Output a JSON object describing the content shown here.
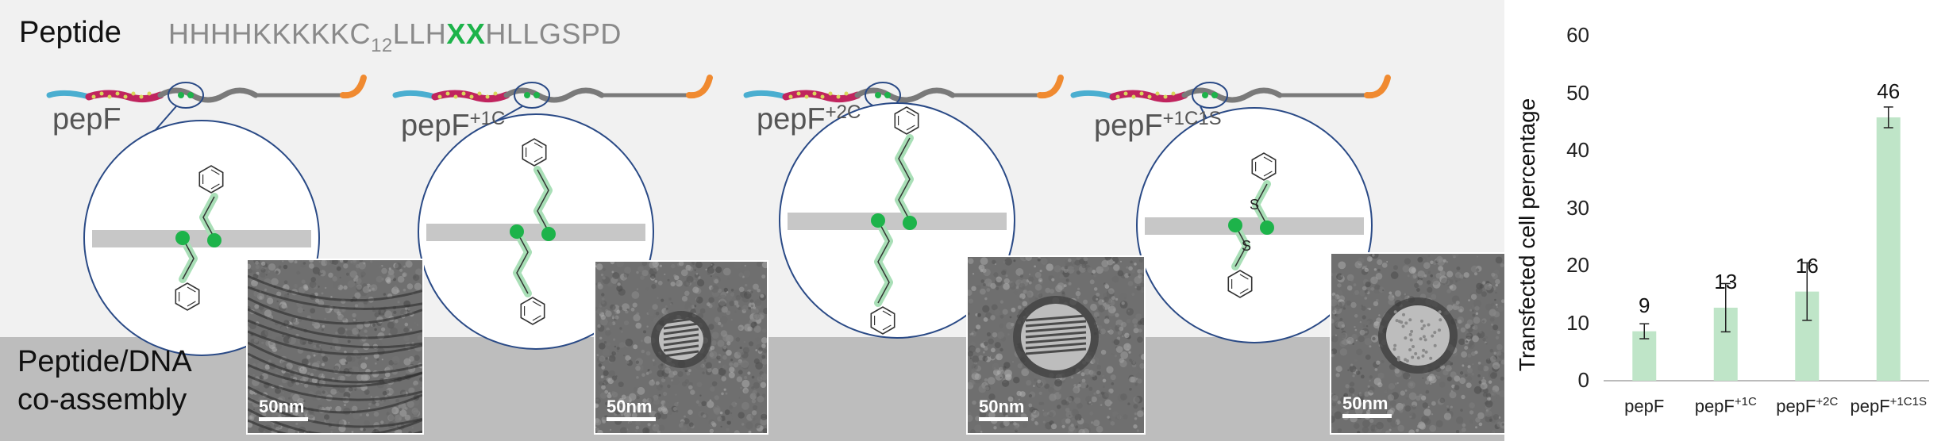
{
  "header": {
    "peptide_label": "Peptide",
    "sequence_prefix": "HHHHKKKKKC",
    "sequence_subscript": "12",
    "sequence_mid": "LLH",
    "sequence_highlight": "XX",
    "sequence_suffix": "HLLGSPD"
  },
  "variants": [
    {
      "base": "pepF",
      "sup": ""
    },
    {
      "base": "pepF",
      "sup": "+1C"
    },
    {
      "base": "pepF",
      "sup": "+2C"
    },
    {
      "base": "pepF",
      "sup": "+1C1S"
    }
  ],
  "linker_atom": "S",
  "coassembly_label_line1": "Peptide/DNA",
  "coassembly_label_line2": "co-assembly",
  "scale_label": "50nm",
  "colors": {
    "highlight": "#1db34a",
    "bar": "#bfe5c8",
    "circle": "#2a4a86",
    "strand_blue": "#4aaed0",
    "strand_pink": "#c0245e",
    "strand_orange": "#f08a30"
  },
  "chart_data": {
    "type": "bar",
    "ylabel": "Transfected cell percentage",
    "ylim": [
      0,
      60
    ],
    "yticks": [
      0,
      10,
      20,
      30,
      40,
      50,
      60
    ],
    "categories": [
      {
        "base": "pepF",
        "sup": ""
      },
      {
        "base": "pepF",
        "sup": "+1C"
      },
      {
        "base": "pepF",
        "sup": "+2C"
      },
      {
        "base": "pepF",
        "sup": "+1C1S"
      }
    ],
    "values": [
      9,
      13,
      16,
      46
    ],
    "bar_heights": [
      8.6,
      12.7,
      15.5,
      45.8
    ],
    "errors": [
      1.3,
      4.2,
      5.0,
      1.8
    ],
    "data_labels": [
      "9",
      "13",
      "16",
      "46"
    ],
    "grid": false
  }
}
